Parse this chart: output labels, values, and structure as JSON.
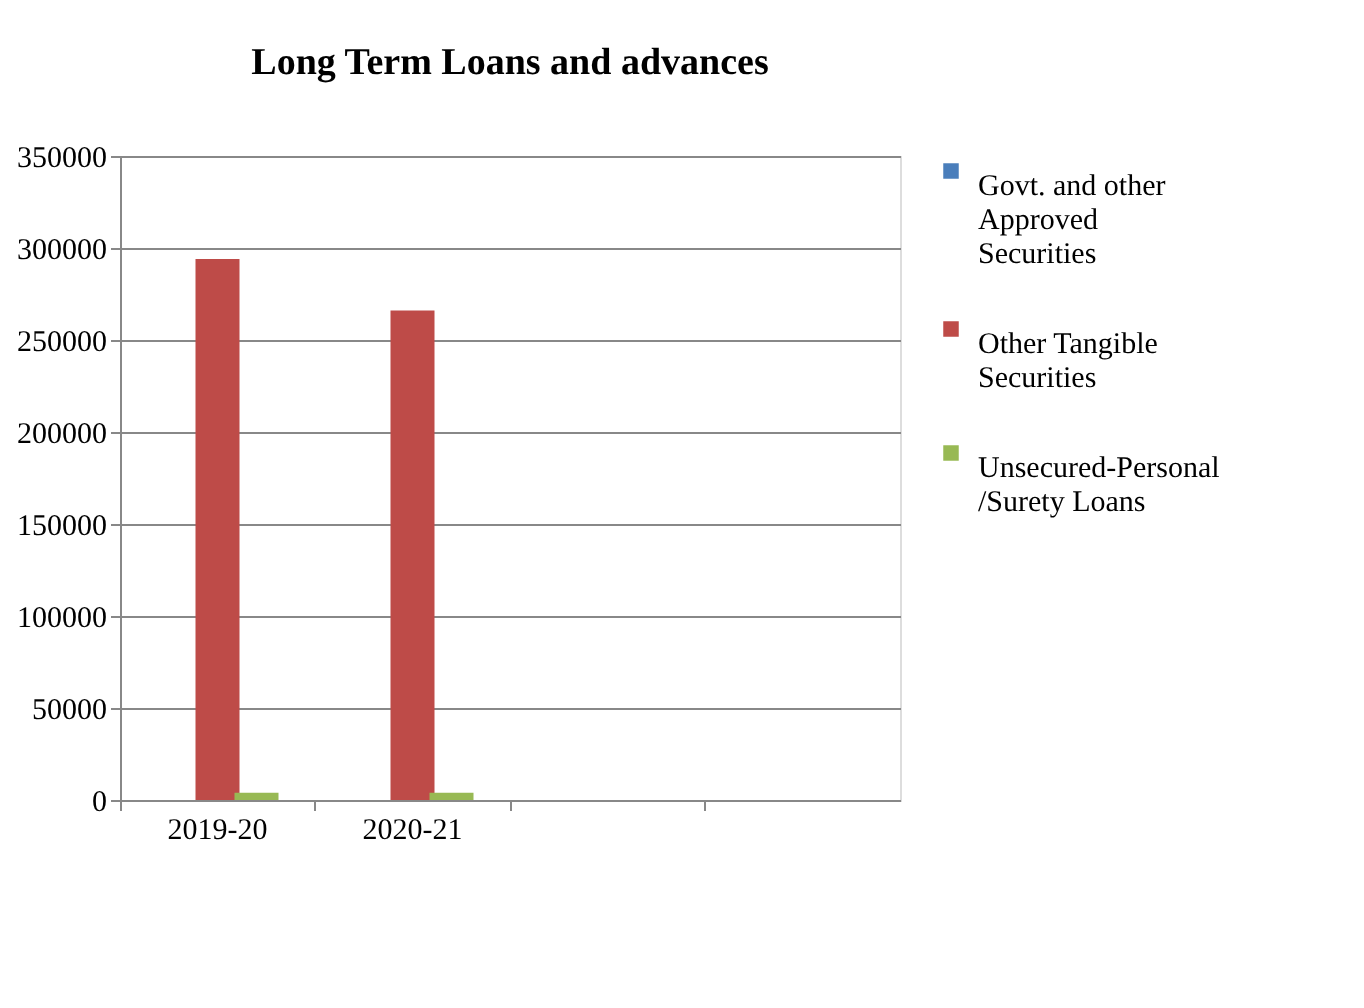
{
  "chart_data": {
    "type": "bar",
    "title": "Long Term Loans and advances",
    "categories": [
      "2019-20",
      "2020-21",
      null,
      null
    ],
    "series": [
      {
        "name": "Govt. and other Approved Securities",
        "color": "#4a7ebb",
        "values": [
          0,
          0,
          null,
          null
        ]
      },
      {
        "name": "Other Tangible Securities",
        "color": "#be4b48",
        "values": [
          294000,
          266000,
          null,
          null
        ]
      },
      {
        "name": "Unsecured-Personal /Surety Loans",
        "color": "#98b954",
        "values": [
          4000,
          4000,
          null,
          null
        ]
      }
    ],
    "ylim": [
      0,
      350000
    ],
    "yticks": [
      0,
      50000,
      100000,
      150000,
      200000,
      250000,
      300000,
      350000
    ],
    "grid": "y",
    "legend": "right"
  }
}
